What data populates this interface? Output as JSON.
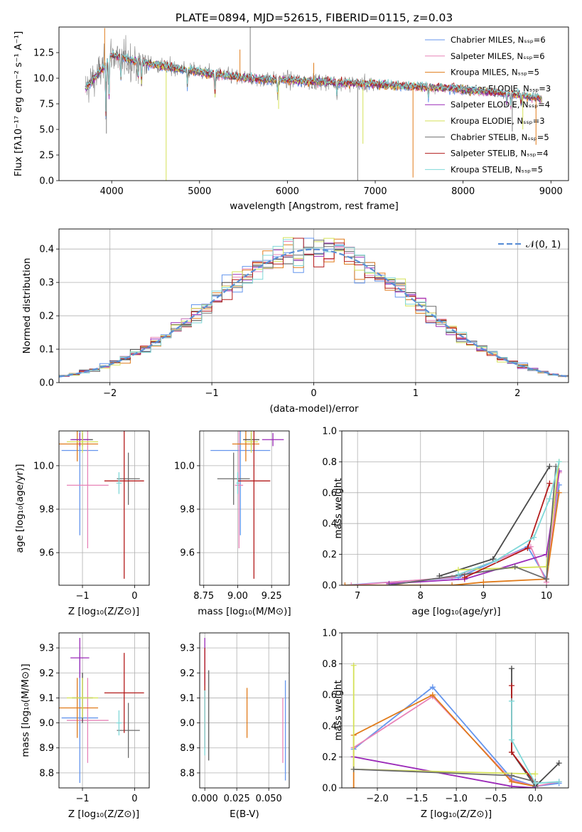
{
  "colors": [
    "#6495ed",
    "#e884b8",
    "#e07b1a",
    "#4a4a4a",
    "#9b2ab8",
    "#d4e157",
    "#6b6b6b",
    "#b31b1b",
    "#7fd8d8"
  ],
  "chart_data": [
    {
      "type": "line",
      "title": "PLATE=0894, MJD=52615, FIBERID=0115, z=0.03",
      "xlabel": "wavelength [Angstrom, rest frame]",
      "ylabel": "Flux [fλ10⁻¹⁷ erg cm⁻² s⁻¹ A⁻¹]",
      "xlim": [
        3400,
        9200
      ],
      "ylim": [
        0,
        15
      ],
      "xticks": [
        "4000",
        "5000",
        "6000",
        "7000",
        "8000",
        "9000"
      ],
      "yticks": [
        "0.0",
        "2.5",
        "5.0",
        "7.5",
        "10.0",
        "12.5"
      ],
      "legend_placement": "upper right",
      "series": [
        {
          "name": "Chabrier MILES, Nₛₛₚ=6"
        },
        {
          "name": "Salpeter MILES, Nₛₛₚ=6"
        },
        {
          "name": "Kroupa MILES, Nₛₛₚ=5"
        },
        {
          "name": "Chabrier ELODIE, Nₛₛₚ=3"
        },
        {
          "name": "Salpeter ELODIE, Nₛₛₚ=4"
        },
        {
          "name": "Kroupa ELODIE, Nₛₛₚ=3"
        },
        {
          "name": "Chabrier STELIB, Nₛₛₚ=5"
        },
        {
          "name": "Salpeter STELIB, Nₛₛₚ=4"
        },
        {
          "name": "Kroupa STELIB, Nₛₛₚ=5"
        }
      ],
      "continuum": {
        "x": [
          3700,
          3900,
          4000,
          4200,
          4500,
          5000,
          5500,
          6000,
          6500,
          7000,
          7500,
          8000,
          8500,
          8900
        ],
        "y": [
          9.0,
          11.0,
          12.3,
          11.8,
          11.3,
          10.6,
          10.0,
          9.8,
          9.6,
          9.4,
          9.2,
          8.9,
          8.5,
          8.0
        ]
      }
    },
    {
      "type": "step",
      "xlabel": "(data-model)/error",
      "ylabel": "Normed distribution",
      "xlim": [
        -2.5,
        2.5
      ],
      "ylim": [
        0,
        0.46
      ],
      "xticks": [
        "−2",
        "−1",
        "0",
        "1",
        "2"
      ],
      "yticks": [
        "0.0",
        "0.1",
        "0.2",
        "0.3",
        "0.4"
      ],
      "grid": true,
      "reference_curve": {
        "name": "𝒩(0, 1)",
        "mean": 0,
        "sigma": 1
      },
      "legend_placement": "upper right"
    },
    {
      "type": "errorbar",
      "xlabel": "Z [log₁₀(Z/Z⊙)]",
      "ylabel": "age  [log₁₀(age/yr)]",
      "xlim": [
        -1.45,
        0.28
      ],
      "ylim": [
        9.45,
        10.16
      ],
      "xticks": [
        "−1",
        "0"
      ],
      "yticks": [
        "9.6",
        "9.8",
        "10.0"
      ],
      "points": [
        {
          "x": -1.05,
          "y": 10.07,
          "xerr": 0.35,
          "yerr": 0.39
        },
        {
          "x": -0.9,
          "y": 9.91,
          "xerr": 0.4,
          "yerr": 0.29
        },
        {
          "x": -1.1,
          "y": 10.1,
          "xerr": 0.4,
          "yerr": 0.08
        },
        {
          "x": -1.0,
          "y": 10.12,
          "xerr": 0.2,
          "yerr": 0.03
        },
        {
          "x": -1.05,
          "y": 10.12,
          "xerr": 0.18,
          "yerr": 0.03
        },
        {
          "x": -1.0,
          "y": 10.11,
          "xerr": 0.3,
          "yerr": 0.05
        },
        {
          "x": -0.12,
          "y": 9.94,
          "xerr": 0.22,
          "yerr": 0.12
        },
        {
          "x": -0.2,
          "y": 9.93,
          "xerr": 0.38,
          "yerr": 0.45
        },
        {
          "x": -0.3,
          "y": 9.92,
          "xerr": 0.05,
          "yerr": 0.05
        }
      ]
    },
    {
      "type": "errorbar",
      "xlabel": "mass [log₁₀(M/M⊙)]",
      "ylabel": "",
      "xlim": [
        8.72,
        9.38
      ],
      "ylim": [
        9.45,
        10.16
      ],
      "xticks": [
        "8.75",
        "9.00",
        "9.25"
      ],
      "yticks": [
        "9.6",
        "9.8",
        "10.0"
      ],
      "points": [
        {
          "x": 9.02,
          "y": 10.07,
          "xerr": 0.22,
          "yerr": 0.39
        },
        {
          "x": 9.01,
          "y": 9.91,
          "xerr": 0.03,
          "yerr": 0.29
        },
        {
          "x": 9.06,
          "y": 10.1,
          "xerr": 0.1,
          "yerr": 0.08
        },
        {
          "x": 9.1,
          "y": 10.12,
          "xerr": 0.06,
          "yerr": 0.03
        },
        {
          "x": 9.26,
          "y": 10.12,
          "xerr": 0.08,
          "yerr": 0.03
        },
        {
          "x": 9.1,
          "y": 10.11,
          "xerr": 0.05,
          "yerr": 0.05
        },
        {
          "x": 8.97,
          "y": 9.94,
          "xerr": 0.12,
          "yerr": 0.12
        },
        {
          "x": 9.12,
          "y": 9.93,
          "xerr": 0.12,
          "yerr": 0.45
        },
        {
          "x": 9.0,
          "y": 9.92,
          "xerr": 0.01,
          "yerr": 0.05
        }
      ]
    },
    {
      "type": "line",
      "xlabel": "age  [log₁₀(age/yr)]",
      "ylabel": "mass weight",
      "xlim": [
        6.75,
        10.35
      ],
      "ylim": [
        0,
        1.0
      ],
      "xticks": [
        "7",
        "8",
        "9",
        "10"
      ],
      "yticks": [
        "0.0",
        "0.2",
        "0.4",
        "0.6",
        "0.8",
        "1.0"
      ],
      "grid": true,
      "series": [
        {
          "x": [
            6.8,
            8.6,
            9.7,
            10.0,
            10.2
          ],
          "y": [
            0.0,
            0.05,
            0.25,
            0.04,
            0.65
          ]
        },
        {
          "x": [
            6.9,
            8.5,
            9.75,
            10.0,
            10.2
          ],
          "y": [
            0.0,
            0.05,
            0.25,
            0.02,
            0.73
          ]
        },
        {
          "x": [
            6.8,
            8.5,
            9.0,
            10.0,
            10.2
          ],
          "y": [
            0.0,
            0.0,
            0.02,
            0.04,
            0.6
          ]
        },
        {
          "x": [
            8.3,
            9.15,
            10.05
          ],
          "y": [
            0.06,
            0.17,
            0.77
          ]
        },
        {
          "x": [
            7.5,
            8.7,
            10.0,
            10.2
          ],
          "y": [
            0.01,
            0.04,
            0.2,
            0.74
          ]
        },
        {
          "x": [
            8.6,
            10.0,
            10.2
          ],
          "y": [
            0.1,
            0.12,
            0.8
          ]
        },
        {
          "x": [
            7.5,
            8.7,
            9.5,
            10.0,
            10.15
          ],
          "y": [
            0.0,
            0.07,
            0.12,
            0.04,
            0.77
          ]
        },
        {
          "x": [
            8.7,
            9.7,
            10.05
          ],
          "y": [
            0.05,
            0.24,
            0.66
          ]
        },
        {
          "x": [
            8.6,
            9.2,
            9.8,
            10.05,
            10.2
          ],
          "y": [
            0.07,
            0.16,
            0.31,
            0.56,
            0.8
          ]
        }
      ]
    },
    {
      "type": "errorbar",
      "xlabel": "Z [log₁₀(Z/Z⊙)]",
      "ylabel": "mass [log₁₀(M/M⊙)]",
      "xlim": [
        -1.45,
        0.28
      ],
      "ylim": [
        8.74,
        9.36
      ],
      "xticks": [
        "−1",
        "0"
      ],
      "yticks": [
        "8.8",
        "8.9",
        "9.0",
        "9.1",
        "9.2",
        "9.3"
      ],
      "points": [
        {
          "x": -1.05,
          "y": 9.02,
          "xerr": 0.35,
          "yerr": 0.26
        },
        {
          "x": -0.9,
          "y": 9.01,
          "xerr": 0.4,
          "yerr": 0.17
        },
        {
          "x": -1.1,
          "y": 9.06,
          "xerr": 0.4,
          "yerr": 0.12
        },
        {
          "x": -1.0,
          "y": 9.1,
          "xerr": 0.2,
          "yerr": 0.1
        },
        {
          "x": -1.05,
          "y": 9.26,
          "xerr": 0.18,
          "yerr": 0.08
        },
        {
          "x": -1.0,
          "y": 9.1,
          "xerr": 0.3,
          "yerr": 0.08
        },
        {
          "x": -0.12,
          "y": 8.97,
          "xerr": 0.22,
          "yerr": 0.11
        },
        {
          "x": -0.2,
          "y": 9.12,
          "xerr": 0.38,
          "yerr": 0.16
        },
        {
          "x": -0.3,
          "y": 9.0,
          "xerr": 0.05,
          "yerr": 0.05
        }
      ]
    },
    {
      "type": "errorbar",
      "xlabel": "E(B-V)",
      "ylabel": "",
      "xlim": [
        -0.004,
        0.066
      ],
      "ylim": [
        8.74,
        9.36
      ],
      "xticks": [
        "0.000",
        "0.025",
        "0.050"
      ],
      "yticks": [
        "8.8",
        "8.9",
        "9.0",
        "9.1",
        "9.2",
        "9.3"
      ],
      "points": [
        {
          "x": 0.063,
          "y": 8.97,
          "xerr": 0,
          "yerr": 0.2
        },
        {
          "x": 0.061,
          "y": 8.97,
          "xerr": 0,
          "yerr": 0.13
        },
        {
          "x": 0.033,
          "y": 9.04,
          "xerr": 0,
          "yerr": 0.1
        },
        {
          "x": 0.003,
          "y": 9.03,
          "xerr": 0,
          "yerr": 0.18
        },
        {
          "x": 0.0,
          "y": 9.18,
          "xerr": 0,
          "yerr": 0.16
        },
        {
          "x": 0.0,
          "y": 9.05,
          "xerr": 0,
          "yerr": 0.1
        },
        {
          "x": 0.003,
          "y": 9.03,
          "xerr": 0,
          "yerr": 0.18
        },
        {
          "x": 0.0,
          "y": 9.1,
          "xerr": 0,
          "yerr": 0.2
        },
        {
          "x": 0.0,
          "y": 9.0,
          "xerr": 0,
          "yerr": 0.13
        }
      ]
    },
    {
      "type": "line",
      "xlabel": "Z [log₁₀(Z/Z⊙)]",
      "ylabel": "mass weight",
      "xlim": [
        -2.45,
        0.42
      ],
      "ylim": [
        0,
        1.0
      ],
      "xticks": [
        "−2.0",
        "−1.5",
        "−1.0",
        "−0.5",
        "0.0"
      ],
      "yticks": [
        "0.0",
        "0.2",
        "0.4",
        "0.6",
        "0.8",
        "1.0"
      ],
      "grid": true,
      "series": [
        {
          "x": [
            -2.3,
            -1.3,
            -0.3,
            0.0,
            0.3
          ],
          "y": [
            0.25,
            0.65,
            0.06,
            0.01,
            0.03
          ]
        },
        {
          "x": [
            -2.3,
            -1.3,
            -0.3,
            0.0,
            0.3
          ],
          "y": [
            0.26,
            0.59,
            0.05,
            0.01,
            0.04
          ]
        },
        {
          "x": [
            -2.3,
            -2.3,
            -1.3,
            -0.3,
            0.0
          ],
          "y": [
            0.0,
            0.34,
            0.6,
            0.04,
            0.01
          ]
        },
        {
          "x": [
            -0.3,
            -0.3,
            0.0,
            0.3
          ],
          "y": [
            0.77,
            0.23,
            0.01,
            0.16
          ]
        },
        {
          "x": [
            -2.3,
            -0.3,
            0.0
          ],
          "y": [
            0.2,
            0.01,
            0.0
          ]
        },
        {
          "x": [
            -2.3,
            -2.3,
            0.0
          ],
          "y": [
            0.79,
            0.12,
            0.09
          ]
        },
        {
          "x": [
            -2.3,
            -0.3,
            0.0
          ],
          "y": [
            0.12,
            0.08,
            0.04
          ]
        },
        {
          "x": [
            -0.3,
            -0.3,
            0.0
          ],
          "y": [
            0.66,
            0.23,
            0.03
          ]
        },
        {
          "x": [
            -0.3,
            -0.3,
            0.0,
            0.3
          ],
          "y": [
            0.56,
            0.31,
            0.03,
            0.04
          ]
        }
      ]
    }
  ]
}
